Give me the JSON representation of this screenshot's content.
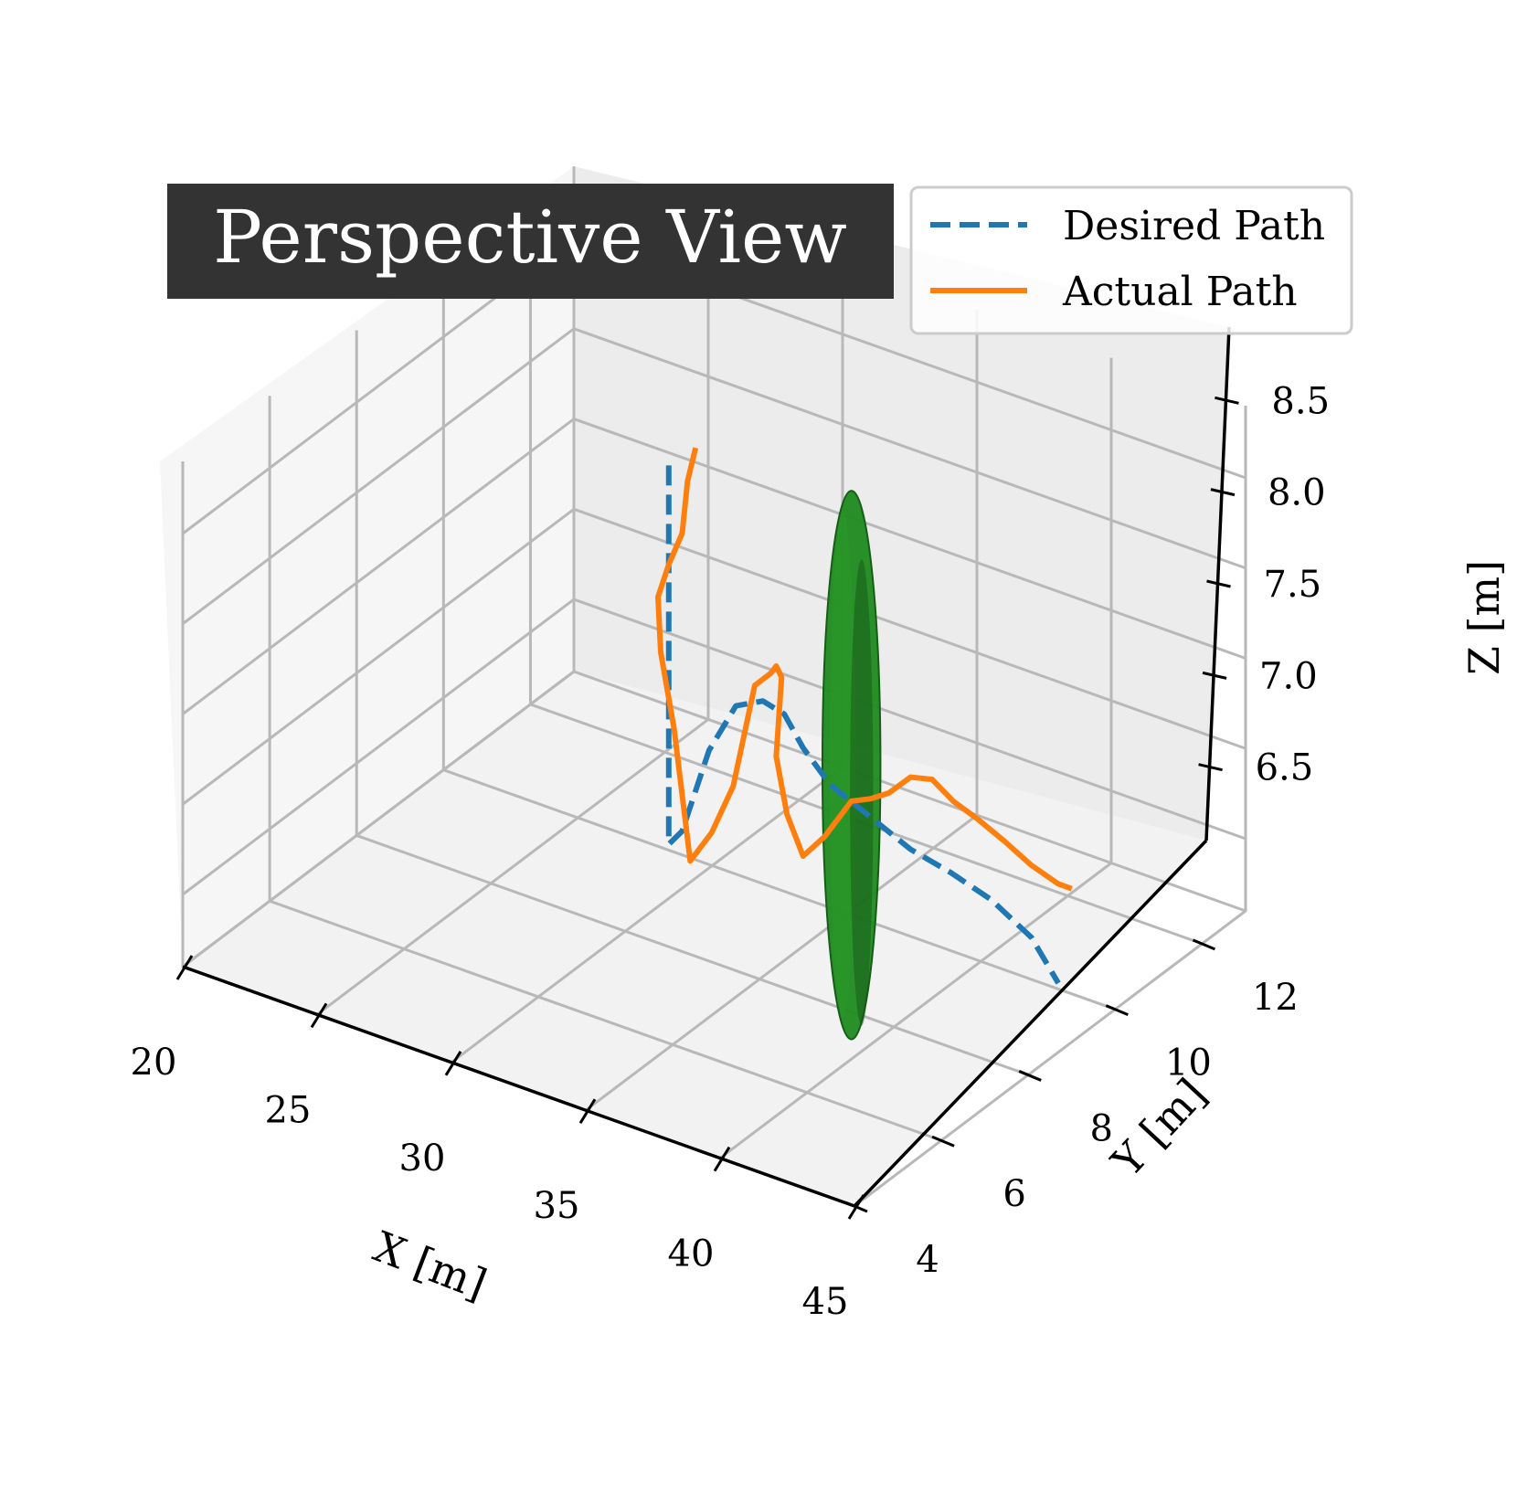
{
  "chart_data": {
    "type": "line",
    "projection": "3d-perspective",
    "title": "Perspective View",
    "xlabel": "X [m]",
    "ylabel": "Y [m]",
    "zlabel": "Z [m]",
    "xlim": [
      20,
      45
    ],
    "ylim": [
      4,
      13
    ],
    "zlim": [
      6.1,
      8.9
    ],
    "xticks": [
      "20",
      "25",
      "30",
      "35",
      "40",
      "45"
    ],
    "yticks": [
      "4",
      "6",
      "8",
      "10",
      "12"
    ],
    "zticks": [
      "6.5",
      "7.0",
      "7.5",
      "8.0",
      "8.5"
    ],
    "grid": true,
    "legend_position": "top-right",
    "series": [
      {
        "name": "Desired Path",
        "style": "dashed",
        "color": "#1f77b4",
        "x": [
          30.0,
          30.0,
          30.0,
          30.0,
          30.5,
          31.5,
          32.5,
          33.5,
          34.3,
          35.0,
          36.0,
          37.5,
          39.0,
          40.5,
          42.0,
          43.5,
          44.5
        ],
        "y": [
          9.0,
          9.0,
          9.0,
          9.0,
          9.0,
          9.0,
          9.0,
          9.0,
          9.0,
          9.0,
          9.0,
          9.0,
          9.0,
          9.0,
          9.0,
          9.0,
          9.0
        ],
        "z": [
          8.5,
          7.9,
          7.4,
          6.4,
          6.5,
          7.0,
          7.3,
          7.38,
          7.35,
          7.2,
          7.05,
          6.95,
          6.85,
          6.8,
          6.73,
          6.6,
          6.4
        ]
      },
      {
        "name": "Actual Path",
        "style": "solid",
        "color": "#ff7f0e",
        "x": [
          31.0,
          30.7,
          30.5,
          30.0,
          29.6,
          29.7,
          30.2,
          30.8,
          31.6,
          32.4,
          33.0,
          33.2,
          33.5,
          33.8,
          34.0,
          34.2,
          34.0,
          34.4,
          35.0,
          35.8,
          36.8,
          37.5,
          38.2,
          39.0,
          39.8,
          40.6,
          41.5,
          42.5,
          43.5,
          44.5,
          45.0
        ],
        "y": [
          9.0,
          9.0,
          9.0,
          9.0,
          9.0,
          9.0,
          9.0,
          9.0,
          9.0,
          9.0,
          9.0,
          9.0,
          9.0,
          9.0,
          9.0,
          9.0,
          9.0,
          9.0,
          9.0,
          9.0,
          9.0,
          9.0,
          9.0,
          9.0,
          9.0,
          9.0,
          9.0,
          9.0,
          9.0,
          9.0,
          9.0
        ],
        "z": [
          8.65,
          8.45,
          8.15,
          7.95,
          7.75,
          7.45,
          7.05,
          6.35,
          6.55,
          6.85,
          7.3,
          7.45,
          7.5,
          7.55,
          7.6,
          7.55,
          7.1,
          6.8,
          6.6,
          6.75,
          7.0,
          7.05,
          7.12,
          7.25,
          7.28,
          7.2,
          7.15,
          7.08,
          7.0,
          6.95,
          6.95
        ]
      }
    ],
    "obstacle": {
      "shape": "ellipsoid",
      "color": "#1f8a1f",
      "center": {
        "x": 36.8,
        "y": 9.0,
        "z": 7.2
      },
      "radii": {
        "x": 0.8,
        "y": 0.6,
        "z": 0.8
      }
    }
  }
}
